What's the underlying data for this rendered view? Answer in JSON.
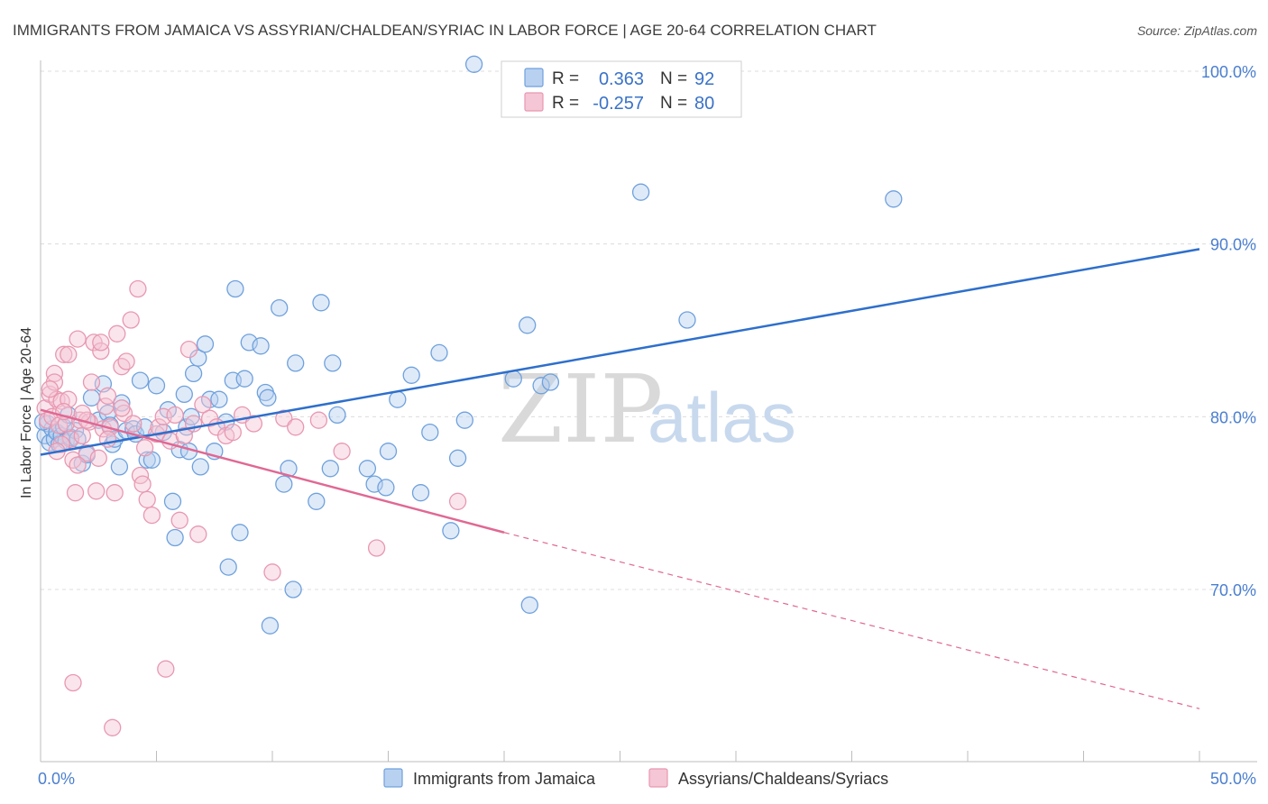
{
  "title": "IMMIGRANTS FROM JAMAICA VS ASSYRIAN/CHALDEAN/SYRIAC IN LABOR FORCE | AGE 20-64 CORRELATION CHART",
  "source": "Source: ZipAtlas.com",
  "watermark": {
    "zip": "ZIP",
    "atlas": "atlas"
  },
  "colors": {
    "blue": "#6fa1dd",
    "blue_fill": "#b9d1f0",
    "blue_line": "#2e6fcc",
    "pink": "#e898b1",
    "pink_fill": "#f5c6d5",
    "pink_line": "#e06893",
    "tick_text": "#4a7fd0",
    "grid": "#dcdcdc"
  },
  "legend_top": {
    "rows": [
      {
        "r_label": "R =",
        "r_value": "0.363",
        "n_label": "N =",
        "n_value": "92"
      },
      {
        "r_label": "R =",
        "r_value": "-0.257",
        "n_label": "N =",
        "n_value": "80"
      }
    ]
  },
  "legend_bottom": [
    "Immigrants from Jamaica",
    "Assyrians/Chaldeans/Syriacs"
  ],
  "chart_data": {
    "type": "scatter",
    "title": "IMMIGRANTS FROM JAMAICA VS ASSYRIAN/CHALDEAN/SYRIAC IN LABOR FORCE | AGE 20-64 CORRELATION CHART",
    "xlabel": "",
    "ylabel": "In Labor Force | Age 20-64",
    "xlim": [
      0,
      50
    ],
    "ylim": [
      60,
      101
    ],
    "x_tick_labels": [
      "0.0%",
      "50.0%"
    ],
    "y_ticks": [
      70,
      80,
      90,
      100
    ],
    "y_tick_labels": [
      "70.0%",
      "80.0%",
      "90.0%",
      "100.0%"
    ],
    "grid": true,
    "legend_position": "top-center",
    "series": [
      {
        "name": "Immigrants from Jamaica",
        "color": "#6fa1dd",
        "r": 0.363,
        "n": 92,
        "trend": {
          "x": [
            0,
            50
          ],
          "y": [
            77.8,
            89.7
          ],
          "dashed_from": null
        },
        "points": [
          [
            0.2,
            78.9
          ],
          [
            0.3,
            79.6
          ],
          [
            0.4,
            78.5
          ],
          [
            0.5,
            79.3
          ],
          [
            0.6,
            78.7
          ],
          [
            0.7,
            79.1
          ],
          [
            0.8,
            78.4
          ],
          [
            0.9,
            78.9
          ],
          [
            1.0,
            79.4
          ],
          [
            1.1,
            78.6
          ],
          [
            1.2,
            80.1
          ],
          [
            1.3,
            78.8
          ],
          [
            1.5,
            79.2
          ],
          [
            1.6,
            78.7
          ],
          [
            1.8,
            77.3
          ],
          [
            2.0,
            77.8
          ],
          [
            2.2,
            81.1
          ],
          [
            2.5,
            79.8
          ],
          [
            2.7,
            81.9
          ],
          [
            2.9,
            80.2
          ],
          [
            3.0,
            79.5
          ],
          [
            3.1,
            78.4
          ],
          [
            3.2,
            78.7
          ],
          [
            3.4,
            77.1
          ],
          [
            3.5,
            80.8
          ],
          [
            3.7,
            79.2
          ],
          [
            4.0,
            79.3
          ],
          [
            4.1,
            79.0
          ],
          [
            4.3,
            82.1
          ],
          [
            4.5,
            79.4
          ],
          [
            4.6,
            77.5
          ],
          [
            4.8,
            77.5
          ],
          [
            5.0,
            81.8
          ],
          [
            5.3,
            79.1
          ],
          [
            5.5,
            80.4
          ],
          [
            5.7,
            75.1
          ],
          [
            5.8,
            73.0
          ],
          [
            6.0,
            78.1
          ],
          [
            6.2,
            81.3
          ],
          [
            6.3,
            79.4
          ],
          [
            6.4,
            78.0
          ],
          [
            6.5,
            80.0
          ],
          [
            6.6,
            82.5
          ],
          [
            6.8,
            83.4
          ],
          [
            6.9,
            77.1
          ],
          [
            7.1,
            84.2
          ],
          [
            7.3,
            81.0
          ],
          [
            7.5,
            78.0
          ],
          [
            7.7,
            81.0
          ],
          [
            8.0,
            79.7
          ],
          [
            8.1,
            71.3
          ],
          [
            8.3,
            82.1
          ],
          [
            8.4,
            87.4
          ],
          [
            8.6,
            73.3
          ],
          [
            8.8,
            82.2
          ],
          [
            9.0,
            84.3
          ],
          [
            9.5,
            84.1
          ],
          [
            9.7,
            81.4
          ],
          [
            9.8,
            81.1
          ],
          [
            9.9,
            67.9
          ],
          [
            10.3,
            86.3
          ],
          [
            10.5,
            76.1
          ],
          [
            10.7,
            77.0
          ],
          [
            10.9,
            70.0
          ],
          [
            11.0,
            83.1
          ],
          [
            11.9,
            75.1
          ],
          [
            12.1,
            86.6
          ],
          [
            12.5,
            77.0
          ],
          [
            12.6,
            83.1
          ],
          [
            12.8,
            80.1
          ],
          [
            14.1,
            77.0
          ],
          [
            14.4,
            76.1
          ],
          [
            14.9,
            75.9
          ],
          [
            15.0,
            78.0
          ],
          [
            15.4,
            81.0
          ],
          [
            16.0,
            82.4
          ],
          [
            16.4,
            75.6
          ],
          [
            16.8,
            79.1
          ],
          [
            17.2,
            83.7
          ],
          [
            17.7,
            73.4
          ],
          [
            18.0,
            77.6
          ],
          [
            18.3,
            79.8
          ],
          [
            18.7,
            100.4
          ],
          [
            20.4,
            82.2
          ],
          [
            21.0,
            85.3
          ],
          [
            21.1,
            69.1
          ],
          [
            21.6,
            81.8
          ],
          [
            22.0,
            82.0
          ],
          [
            25.9,
            93.0
          ],
          [
            27.9,
            85.6
          ],
          [
            36.8,
            92.6
          ],
          [
            0.1,
            79.7
          ]
        ]
      },
      {
        "name": "Assyrians/Chaldeans/Syriacs",
        "color": "#e898b1",
        "r": -0.257,
        "n": 80,
        "trend": {
          "x": [
            0,
            20
          ],
          "y": [
            80.4,
            73.3
          ],
          "dashed_to": [
            50,
            63.1
          ]
        },
        "points": [
          [
            0.2,
            80.5
          ],
          [
            0.3,
            79.8
          ],
          [
            0.4,
            81.3
          ],
          [
            0.5,
            80.0
          ],
          [
            0.6,
            82.5
          ],
          [
            0.7,
            81.0
          ],
          [
            0.8,
            79.5
          ],
          [
            0.9,
            80.9
          ],
          [
            1.0,
            83.6
          ],
          [
            1.1,
            79.6
          ],
          [
            1.2,
            83.6
          ],
          [
            1.3,
            78.7
          ],
          [
            1.4,
            77.5
          ],
          [
            1.5,
            75.6
          ],
          [
            1.6,
            84.5
          ],
          [
            1.7,
            79.8
          ],
          [
            1.8,
            78.9
          ],
          [
            2.0,
            77.9
          ],
          [
            2.1,
            79.7
          ],
          [
            2.2,
            82.0
          ],
          [
            2.3,
            84.3
          ],
          [
            2.4,
            75.7
          ],
          [
            2.5,
            77.6
          ],
          [
            2.6,
            83.8
          ],
          [
            2.7,
            79.3
          ],
          [
            2.8,
            80.6
          ],
          [
            2.9,
            81.2
          ],
          [
            3.0,
            79.4
          ],
          [
            3.2,
            75.6
          ],
          [
            3.3,
            84.8
          ],
          [
            3.5,
            82.9
          ],
          [
            3.6,
            80.2
          ],
          [
            3.7,
            83.2
          ],
          [
            3.9,
            85.6
          ],
          [
            4.0,
            79.6
          ],
          [
            4.2,
            87.4
          ],
          [
            4.3,
            76.6
          ],
          [
            4.4,
            76.1
          ],
          [
            4.5,
            78.2
          ],
          [
            4.6,
            75.2
          ],
          [
            4.8,
            74.3
          ],
          [
            5.0,
            79.0
          ],
          [
            5.1,
            79.4
          ],
          [
            5.3,
            80.0
          ],
          [
            5.4,
            65.4
          ],
          [
            5.6,
            78.6
          ],
          [
            5.8,
            80.1
          ],
          [
            6.0,
            74.0
          ],
          [
            6.2,
            78.9
          ],
          [
            6.4,
            83.9
          ],
          [
            6.6,
            79.6
          ],
          [
            6.8,
            73.2
          ],
          [
            7.0,
            80.7
          ],
          [
            7.3,
            79.9
          ],
          [
            7.6,
            79.4
          ],
          [
            8.0,
            78.9
          ],
          [
            8.3,
            79.1
          ],
          [
            8.7,
            80.1
          ],
          [
            9.2,
            79.6
          ],
          [
            10.0,
            71.0
          ],
          [
            10.5,
            79.9
          ],
          [
            11.0,
            79.4
          ],
          [
            12.0,
            79.8
          ],
          [
            13.0,
            78.0
          ],
          [
            14.5,
            72.4
          ],
          [
            18.0,
            75.1
          ],
          [
            0.6,
            82.0
          ],
          [
            1.2,
            81.0
          ],
          [
            0.9,
            78.4
          ],
          [
            0.4,
            81.6
          ],
          [
            1.6,
            77.2
          ],
          [
            2.9,
            78.7
          ],
          [
            3.5,
            80.5
          ],
          [
            2.0,
            79.8
          ],
          [
            1.0,
            80.3
          ],
          [
            3.1,
            62.0
          ],
          [
            1.4,
            64.6
          ],
          [
            0.7,
            78.0
          ],
          [
            2.6,
            84.3
          ],
          [
            1.8,
            80.2
          ]
        ]
      }
    ]
  }
}
